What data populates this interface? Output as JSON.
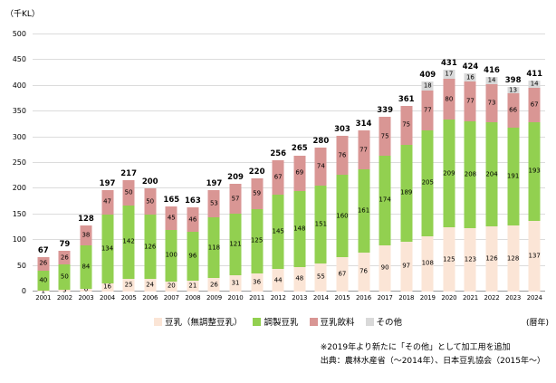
{
  "axis": {
    "y_unit_label": "（千KL）",
    "x_unit_label": "(暦年)"
  },
  "notes": {
    "line1": "※2019年より新たに「その他」として加工用を追加",
    "line2": "出典：農林水産省（～2014年）、日本豆乳協会（2015年～）"
  },
  "chart_data": {
    "type": "bar",
    "stacked": true,
    "title": "",
    "xlabel": "暦年",
    "ylabel": "千KL",
    "ylim": [
      0,
      500
    ],
    "y_ticks": [
      0,
      50,
      100,
      150,
      200,
      250,
      300,
      350,
      400,
      450,
      500
    ],
    "grid": true,
    "legend_position": "bottom",
    "categories": [
      "2001",
      "2002",
      "2003",
      "2004",
      "2005",
      "2006",
      "2007",
      "2008",
      "2009",
      "2010",
      "2011",
      "2012",
      "2013",
      "2014",
      "2015",
      "2016",
      "2017",
      "2018",
      "2019",
      "2020",
      "2021",
      "2022",
      "2023",
      "2024"
    ],
    "series": [
      {
        "name": "豆乳（無調整豆乳）",
        "color": "#fbe5d6",
        "values": [
          1,
          3,
          6,
          16,
          25,
          24,
          20,
          21,
          26,
          31,
          36,
          44,
          48,
          55,
          67,
          76,
          90,
          97,
          108,
          125,
          123,
          126,
          128,
          137
        ]
      },
      {
        "name": "調製豆乳",
        "color": "#92d050",
        "values": [
          40,
          50,
          84,
          134,
          142,
          126,
          100,
          96,
          118,
          121,
          125,
          145,
          148,
          151,
          160,
          161,
          174,
          189,
          205,
          209,
          208,
          204,
          191,
          193
        ]
      },
      {
        "name": "豆乳飲料",
        "color": "#d99694",
        "values": [
          26,
          26,
          38,
          47,
          50,
          50,
          45,
          46,
          53,
          57,
          59,
          67,
          69,
          74,
          76,
          77,
          75,
          75,
          77,
          80,
          77,
          73,
          66,
          67
        ]
      },
      {
        "name": "その他",
        "color": "#d9d9d9",
        "values": [
          0,
          0,
          0,
          0,
          0,
          0,
          0,
          0,
          0,
          0,
          0,
          0,
          0,
          0,
          0,
          0,
          0,
          0,
          18,
          17,
          16,
          14,
          13,
          14
        ]
      }
    ],
    "totals": [
      67,
      79,
      128,
      197,
      217,
      200,
      165,
      163,
      197,
      209,
      220,
      256,
      265,
      280,
      303,
      314,
      339,
      361,
      409,
      431,
      424,
      416,
      398,
      411
    ]
  }
}
